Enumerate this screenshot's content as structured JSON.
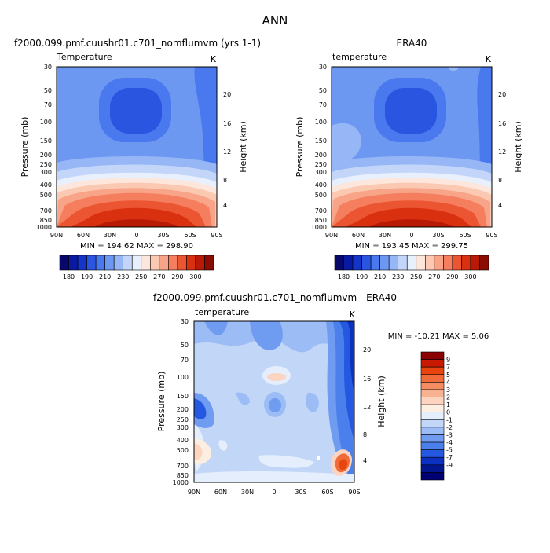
{
  "page_title": "ANN",
  "chart_data": [
    {
      "type": "heatmap",
      "title": "f2000.099.pmf.cuushr01.c701_nomflumvm (yrs 1-1)",
      "variable": "Temperature",
      "units": "K",
      "ylabel": "Pressure (mb)",
      "y2label": "Height (km)",
      "x_ticks": [
        "90N",
        "60N",
        "30N",
        "0",
        "30S",
        "60S",
        "90S"
      ],
      "y_ticks": [
        "30",
        "50",
        "70",
        "100",
        "150",
        "200",
        "250",
        "300",
        "400",
        "500",
        "700",
        "850",
        "1000"
      ],
      "y2_ticks": [
        "20",
        "16",
        "12",
        "8",
        "4"
      ],
      "min": 194.62,
      "max": 298.9,
      "stats": "MIN = 194.62   MAX = 298.90",
      "colorbar": {
        "orientation": "horizontal",
        "labels": [
          "180",
          "190",
          "210",
          "230",
          "250",
          "270",
          "290",
          "300"
        ]
      }
    },
    {
      "type": "heatmap",
      "title": "ERA40",
      "variable": "temperature",
      "units": "K",
      "ylabel": "Pressure (mb)",
      "y2label": "Height (km)",
      "x_ticks": [
        "90N",
        "60N",
        "30N",
        "0",
        "30S",
        "60S",
        "90S"
      ],
      "y_ticks": [
        "30",
        "50",
        "70",
        "100",
        "150",
        "200",
        "250",
        "300",
        "400",
        "500",
        "700",
        "850",
        "1000"
      ],
      "y2_ticks": [
        "20",
        "16",
        "12",
        "8",
        "4"
      ],
      "min": 193.45,
      "max": 299.75,
      "stats": "MIN = 193.45   MAX = 299.75",
      "colorbar": {
        "orientation": "horizontal",
        "labels": [
          "180",
          "190",
          "210",
          "230",
          "250",
          "270",
          "290",
          "300"
        ]
      }
    },
    {
      "type": "heatmap",
      "title": "f2000.099.pmf.cuushr01.c701_nomflumvm - ERA40",
      "variable": "temperature",
      "units": "K",
      "ylabel": "Pressure (mb)",
      "y2label": "Height (km)",
      "x_ticks": [
        "90N",
        "60N",
        "30N",
        "0",
        "30S",
        "60S",
        "90S"
      ],
      "y_ticks": [
        "30",
        "50",
        "70",
        "100",
        "150",
        "200",
        "250",
        "300",
        "400",
        "500",
        "700",
        "850",
        "1000"
      ],
      "y2_ticks": [
        "20",
        "16",
        "12",
        "8",
        "4"
      ],
      "min": -10.21,
      "max": 5.06,
      "stats": "MIN = -10.21   MAX =   5.06",
      "colorbar": {
        "orientation": "vertical",
        "labels": [
          "9",
          "7",
          "5",
          "4",
          "3",
          "2",
          "1",
          "0",
          "-1",
          "-2",
          "-3",
          "-4",
          "-5",
          "-7",
          "-9"
        ]
      }
    }
  ],
  "palettes": {
    "absolute": [
      "#08086b",
      "#0a1aa0",
      "#1535c8",
      "#2a55e0",
      "#4a78ee",
      "#6d98f2",
      "#97b6f6",
      "#c3d6fa",
      "#e8f0fd",
      "#fde6dc",
      "#fbc8b2",
      "#f8a488",
      "#f47e5e",
      "#ec5532",
      "#d93010",
      "#b81a05",
      "#8a0c02"
    ],
    "difference": [
      "#8b0000",
      "#c81a00",
      "#e84410",
      "#f06a3a",
      "#f48e62",
      "#f8b292",
      "#fcd4c0",
      "#fdeee2",
      "#e4eefc",
      "#c2d6f8",
      "#9bbcf4",
      "#6f9cf0",
      "#4a7fec",
      "#2458e0",
      "#0c30c0",
      "#021690",
      "#000070"
    ]
  }
}
